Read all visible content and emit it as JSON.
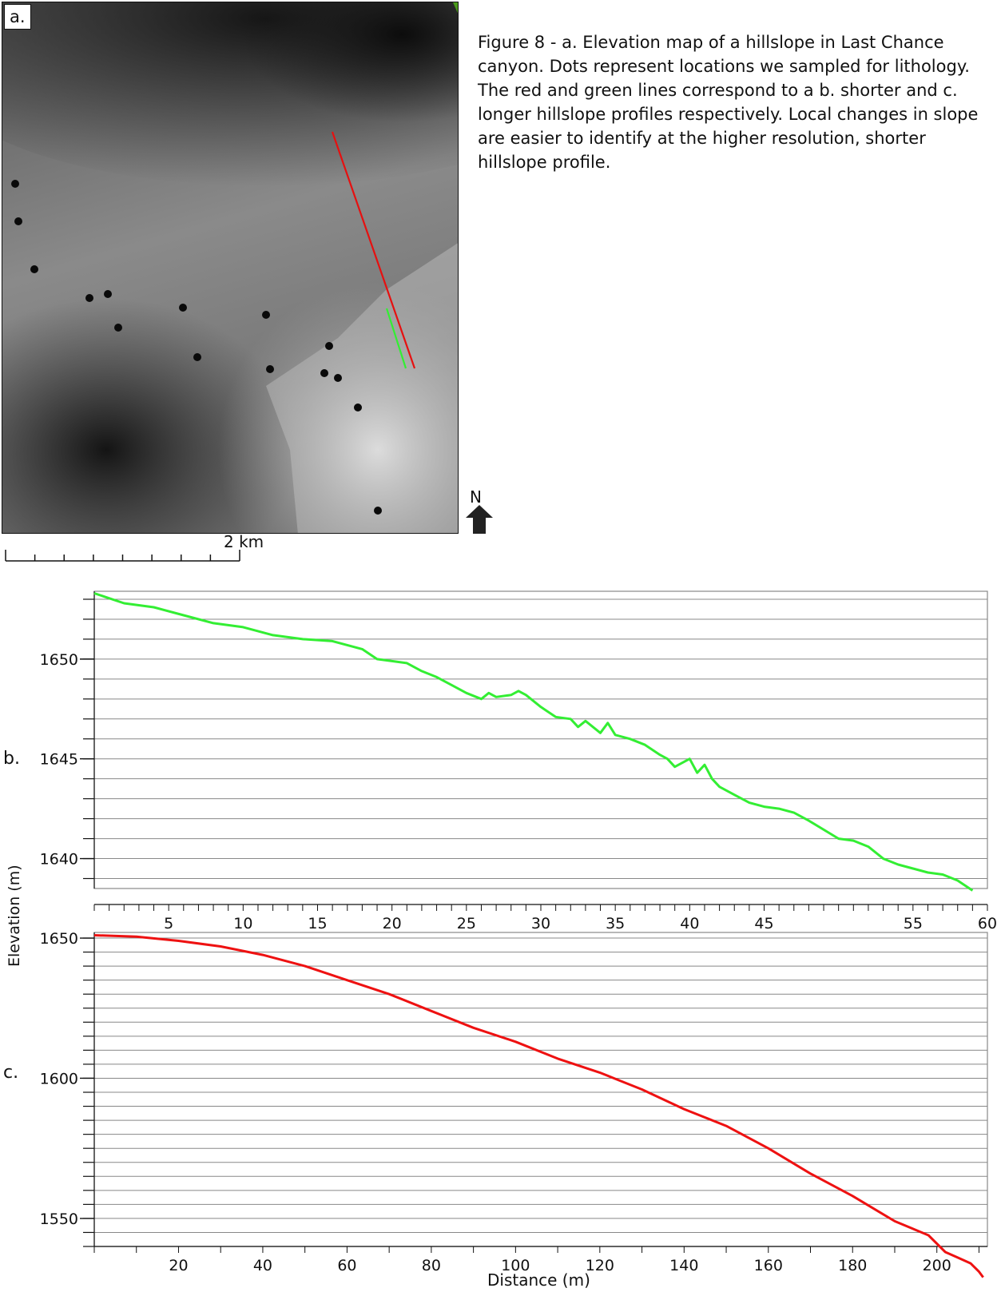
{
  "panel_a": {
    "label": "a.",
    "scale_label": "2 km",
    "north_label": "N"
  },
  "caption": "Figure 8 - a. Elevation map of a hillslope in Last Chance canyon. Dots represent locations we sampled for lithology. The red and green lines correspond to a b. shorter and c. longer hillslope profiles respectively.  Local changes in slope are easier to identify at the higher resolution, shorter hillslope profile.",
  "colors": {
    "green_profile": "#33ee33",
    "red_profile": "#ee1111",
    "grid": "#888888",
    "axis": "#111111"
  },
  "labels": {
    "b": "b.",
    "c": "c.",
    "ylabel": "Elevation (m)",
    "xlabel": "Distance (m)"
  },
  "chart_data": [
    {
      "type": "line",
      "panel": "b",
      "xlabel": "",
      "ylabel": "Elevation (m)",
      "xlim": [
        0,
        60
      ],
      "ylim": [
        1638.5,
        1653.4
      ],
      "xticks": [
        5,
        10,
        15,
        20,
        25,
        30,
        35,
        40,
        45,
        55,
        60
      ],
      "yticks": [
        1640,
        1645,
        1650
      ],
      "grid": true,
      "series": [
        {
          "color": "#33ee33",
          "x": [
            0,
            2,
            4,
            6,
            8,
            10,
            12,
            14,
            16,
            17,
            18,
            19,
            20,
            21,
            22,
            23,
            24,
            25,
            26,
            26.5,
            27,
            28,
            28.5,
            29,
            30,
            31,
            32,
            32.5,
            33,
            34,
            34.5,
            35,
            36,
            37,
            38,
            38.5,
            39,
            40,
            40.5,
            41,
            41.5,
            42,
            43,
            44,
            45,
            46,
            47,
            48,
            50,
            51,
            52,
            53,
            54,
            55,
            56,
            57,
            58,
            59
          ],
          "y": [
            1653.3,
            1652.8,
            1652.6,
            1652.2,
            1651.8,
            1651.6,
            1651.2,
            1651.0,
            1650.9,
            1650.7,
            1650.5,
            1650.0,
            1649.9,
            1649.8,
            1649.4,
            1649.1,
            1648.7,
            1648.3,
            1648.0,
            1648.3,
            1648.1,
            1648.2,
            1648.4,
            1648.2,
            1647.6,
            1647.1,
            1647.0,
            1646.6,
            1646.9,
            1646.3,
            1646.8,
            1646.2,
            1646.0,
            1645.7,
            1645.2,
            1645.0,
            1644.6,
            1645.0,
            1644.3,
            1644.7,
            1644.0,
            1643.6,
            1643.2,
            1642.8,
            1642.6,
            1642.5,
            1642.3,
            1641.9,
            1641.0,
            1640.9,
            1640.6,
            1640.0,
            1639.7,
            1639.5,
            1639.3,
            1639.2,
            1638.9,
            1638.4
          ]
        }
      ]
    },
    {
      "type": "line",
      "panel": "c",
      "xlabel": "Distance (m)",
      "ylabel": "Elevation (m)",
      "xlim": [
        0,
        212
      ],
      "ylim": [
        1540,
        1652
      ],
      "xticks": [
        20,
        40,
        60,
        80,
        100,
        120,
        140,
        160,
        180,
        200
      ],
      "yticks": [
        1550,
        1600,
        1650
      ],
      "grid": true,
      "series": [
        {
          "color": "#ee1111",
          "x": [
            0,
            10,
            20,
            30,
            40,
            50,
            60,
            70,
            80,
            90,
            100,
            110,
            120,
            125,
            130,
            140,
            150,
            160,
            170,
            180,
            190,
            198,
            202,
            205,
            208,
            210,
            211
          ],
          "y": [
            1651,
            1650.5,
            1649,
            1647,
            1644,
            1640,
            1635,
            1630,
            1624,
            1618,
            1613,
            1607,
            1602,
            1599,
            1596,
            1589,
            1583,
            1575,
            1566,
            1558,
            1549,
            1544,
            1538,
            1536,
            1534,
            1531,
            1529
          ]
        }
      ]
    }
  ]
}
